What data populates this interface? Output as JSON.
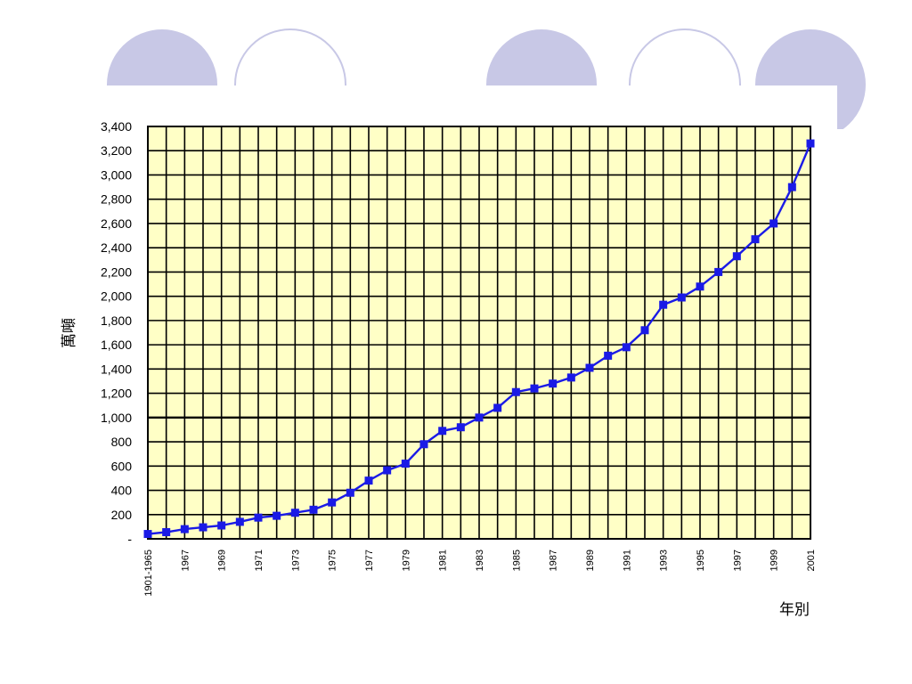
{
  "colors": {
    "decoration": "#c8c8e6",
    "plot_background": "#ffffc6",
    "grid": "#000000",
    "series_line": "#1a1ae6",
    "series_marker": "#1a1ae6"
  },
  "chart_data": {
    "type": "line",
    "title": "",
    "xlabel": "年別",
    "ylabel": "萬噸",
    "ylim": [
      0,
      3400
    ],
    "yticks": [
      0,
      200,
      400,
      600,
      800,
      1000,
      1200,
      1400,
      1600,
      1800,
      2000,
      2200,
      2400,
      2600,
      2800,
      3000,
      3200,
      3400
    ],
    "ytick_labels": [
      "-",
      "200",
      "400",
      "600",
      "800",
      "1,000",
      "1,200",
      "1,400",
      "1,600",
      "1,800",
      "2,000",
      "2,200",
      "2,400",
      "2,600",
      "2,800",
      "3,000",
      "3,200",
      "3,400"
    ],
    "grid": true,
    "x_tick_labels": [
      "1901-1965",
      "1967",
      "1969",
      "1971",
      "1973",
      "1975",
      "1977",
      "1979",
      "1981",
      "1983",
      "1985",
      "1987",
      "1989",
      "1991",
      "1993",
      "1995",
      "1997",
      "1999",
      "2001"
    ],
    "x": [
      "1901-1965",
      "1966",
      "1967",
      "1968",
      "1969",
      "1970",
      "1971",
      "1972",
      "1973",
      "1974",
      "1975",
      "1976",
      "1977",
      "1978",
      "1979",
      "1980",
      "1981",
      "1982",
      "1983",
      "1984",
      "1985",
      "1986",
      "1987",
      "1988",
      "1989",
      "1990",
      "1991",
      "1992",
      "1993",
      "1994",
      "1995",
      "1996",
      "1997",
      "1998",
      "1999",
      "2000",
      "2001"
    ],
    "series": [
      {
        "values": [
          40,
          55,
          80,
          95,
          110,
          140,
          175,
          190,
          215,
          240,
          300,
          380,
          480,
          565,
          620,
          780,
          890,
          920,
          1000,
          1080,
          1210,
          1240,
          1280,
          1330,
          1410,
          1510,
          1580,
          1720,
          1930,
          1990,
          2080,
          2200,
          2330,
          2470,
          2600,
          2900,
          3260
        ]
      }
    ]
  }
}
